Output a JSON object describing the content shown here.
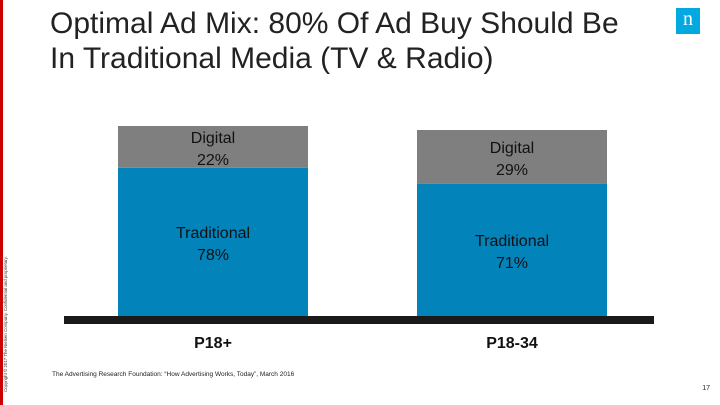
{
  "slide": {
    "title_line1": "Optimal Ad Mix: 80% Of Ad Buy Should Be",
    "title_line2": "In Traditional Media (TV & Radio)",
    "logo_glyph": "n",
    "copyright": "Copyright © 2017 The Nielsen Company. Confidential and proprietary.",
    "source": "The Advertising Research Foundation: “How Advertising Works, Today”, March 2016",
    "page_number": "17"
  },
  "colors": {
    "traditional": "#0283ba",
    "digital": "#7f7f7f",
    "baseline": "#1a1a1a",
    "brand_red": "#cc0000",
    "logo_blue": "#00a9e0"
  },
  "chart_data": {
    "type": "bar",
    "stacked": true,
    "categories": [
      "P18+",
      "P18-34"
    ],
    "series": [
      {
        "name": "Traditional",
        "values": [
          78,
          71
        ],
        "labels": [
          "78%",
          "71%"
        ]
      },
      {
        "name": "Digital",
        "values": [
          22,
          29
        ],
        "labels": [
          "22%",
          "29%"
        ]
      }
    ],
    "title": "",
    "xlabel": "",
    "ylabel": "",
    "ylim": [
      0,
      100
    ],
    "grid": false,
    "legend": "none"
  }
}
